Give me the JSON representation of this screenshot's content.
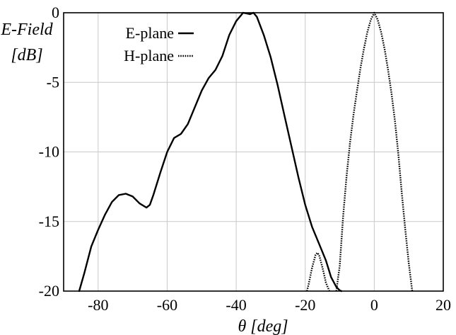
{
  "chart_data": {
    "type": "line",
    "title": "",
    "xlabel": "θ [deg]",
    "ylabel_line1": "E-Field",
    "ylabel_line2": "[dB]",
    "xlim": [
      -90,
      20
    ],
    "ylim": [
      -20,
      0
    ],
    "xticks": [
      -80,
      -60,
      -40,
      -20,
      0,
      20
    ],
    "yticks": [
      0,
      -5,
      -10,
      -15,
      -20
    ],
    "xtick_labels": [
      "-80",
      "-60",
      "-40",
      "-20",
      "0",
      "20"
    ],
    "ytick_labels": [
      "0",
      "-5",
      "-10",
      "-15",
      "-20"
    ],
    "grid": true,
    "legend_position": "top-left",
    "series": [
      {
        "name": "E-plane",
        "style": "solid",
        "color": "#000000",
        "x": [
          -85.5,
          -84,
          -82,
          -80,
          -78,
          -76,
          -74,
          -72,
          -70,
          -68,
          -66,
          -65,
          -64,
          -62,
          -60,
          -58,
          -56,
          -54,
          -52,
          -50,
          -48,
          -46,
          -44,
          -42,
          -40,
          -38,
          -36,
          -35,
          -34,
          -32,
          -30,
          -28,
          -26,
          -24,
          -22,
          -20,
          -18,
          -16,
          -14,
          -12.5,
          -11,
          -10,
          -9.5
        ],
        "y": [
          -20,
          -18.7,
          -16.8,
          -15.6,
          -14.5,
          -13.6,
          -13.1,
          -13.0,
          -13.2,
          -13.7,
          -14.0,
          -13.8,
          -13.1,
          -11.5,
          -10.0,
          -9.0,
          -8.7,
          -8.0,
          -6.8,
          -5.6,
          -4.7,
          -4.1,
          -3.1,
          -1.6,
          -0.6,
          0,
          -0.1,
          0,
          -0.3,
          -1.6,
          -3.2,
          -5.2,
          -7.4,
          -9.6,
          -11.8,
          -13.8,
          -15.4,
          -16.6,
          -17.8,
          -19.0,
          -19.7,
          -19.95,
          -20
        ]
      },
      {
        "name": "H-plane",
        "style": "dotted",
        "color": "#000000",
        "segments": [
          {
            "x": [
              -19.5,
              -19,
              -18,
              -17,
              -16.5,
              -16,
              -15,
              -14,
              -13
            ],
            "y": [
              -20,
              -19.5,
              -18.3,
              -17.4,
              -17.25,
              -17.4,
              -18.3,
              -19.4,
              -20
            ]
          },
          {
            "x": [
              -11,
              -10,
              -9,
              -8,
              -7,
              -6,
              -5,
              -4,
              -3,
              -2,
              -1,
              0,
              1,
              2,
              3,
              4,
              5,
              6,
              7,
              8,
              9,
              10,
              11
            ],
            "y": [
              -20,
              -18.2,
              -14.6,
              -11.7,
              -9.3,
              -7.3,
              -5.6,
              -4.0,
              -2.6,
              -1.4,
              -0.5,
              0,
              -0.5,
              -1.4,
              -2.6,
              -4.1,
              -5.8,
              -7.8,
              -10.2,
              -13.0,
              -15.6,
              -18.0,
              -20
            ]
          }
        ]
      }
    ]
  }
}
